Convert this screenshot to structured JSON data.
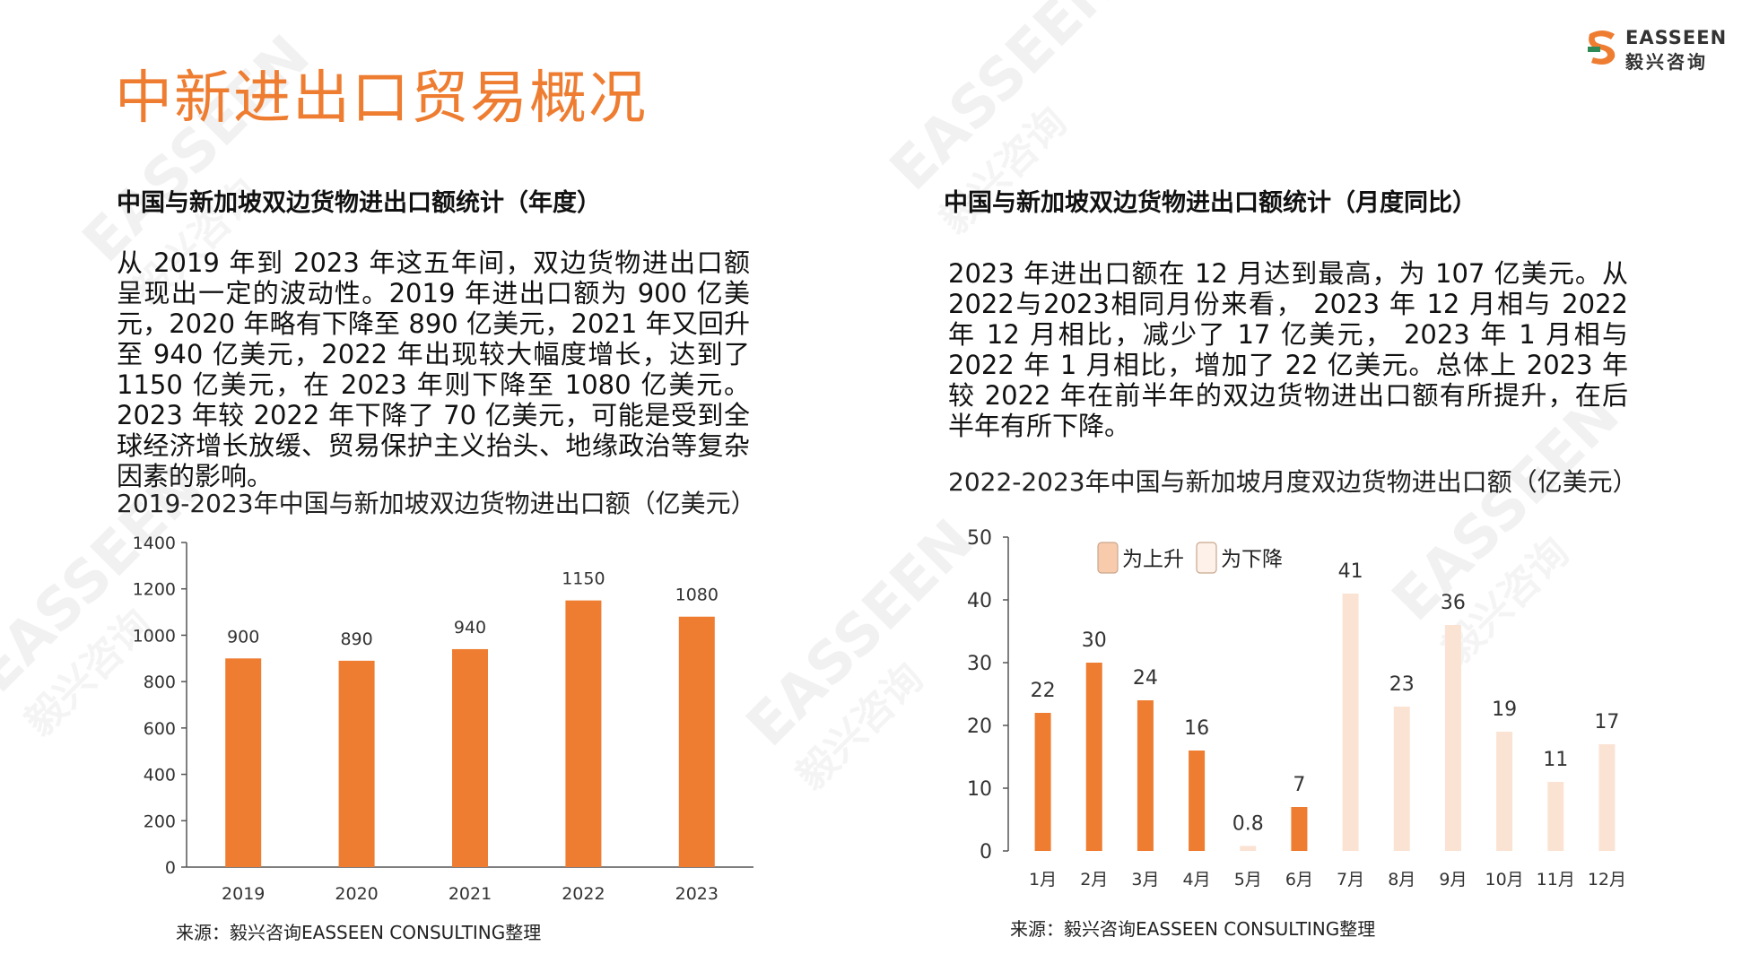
{
  "page": {
    "title": "中新进出口贸易概况",
    "logo": {
      "en": "EASSEEN",
      "cn": "毅兴咨询"
    },
    "watermark": {
      "en": "EASSEEN",
      "cn": "毅兴咨询"
    }
  },
  "left": {
    "heading": "中国与新加坡双边货物进出口额统计（年度）",
    "paragraph": "从 2019 年到 2023 年这五年间，双边货物进出口额呈现出一定的波动性。2019 年进出口额为 900 亿美元，2020 年略有下降至 890 亿美元，2021 年又回升至 940 亿美元，2022 年出现较大幅度增长，达到了 1150 亿美元，在 2023 年则下降至 1080 亿美元。2023 年较 2022 年下降了 70 亿美元，可能是受到全球经济增长放缓、贸易保护主义抬头、地缘政治等复杂因素的影响。",
    "chart_title": "2019-2023年中国与新加坡双边货物进出口额（亿美元）",
    "source": "来源：毅兴咨询EASSEEN CONSULTING整理"
  },
  "right": {
    "heading": "中国与新加坡双边货物进出口额统计（月度同比）",
    "paragraph": "2023 年进出口额在 12 月达到最高，为 107 亿美元。从2022与2023相同月份来看， 2023 年 12 月相与 2022 年 12 月相比，减少了 17 亿美元， 2023 年 1 月相与 2022 年 1 月相比，增加了 22 亿美元。总体上 2023 年较 2022 年在前半年的双边货物进出口额有所提升，在后半年有所下降。",
    "chart_title": "2022-2023年中国与新加坡月度双边货物进出口额（亿美元）",
    "source": "来源：毅兴咨询EASSEEN CONSULTING整理"
  },
  "colors": {
    "accent": "#ee7d31",
    "bar": "#ee7d31",
    "bar_light": "#fbe3d4",
    "axis": "#555555"
  },
  "chart_data": [
    {
      "type": "bar",
      "categories": [
        "2019",
        "2020",
        "2021",
        "2022",
        "2023"
      ],
      "values": [
        900,
        890,
        940,
        1150,
        1080
      ],
      "ylim": [
        0,
        1400
      ],
      "yticks": [
        0,
        200,
        400,
        600,
        800,
        1000,
        1200,
        1400
      ],
      "grid": false
    },
    {
      "type": "bar",
      "categories": [
        "1月",
        "2月",
        "3月",
        "4月",
        "5月",
        "6月",
        "7月",
        "8月",
        "9月",
        "10月",
        "11月",
        "12月"
      ],
      "values": [
        22,
        30,
        24,
        16,
        0.8,
        7,
        41,
        23,
        36,
        19,
        11,
        17
      ],
      "direction": [
        "up",
        "up",
        "up",
        "up",
        "down",
        "up",
        "down",
        "down",
        "down",
        "down",
        "down",
        "down"
      ],
      "legend": [
        {
          "key": "up",
          "label": "为上升"
        },
        {
          "key": "down",
          "label": "为下降"
        }
      ],
      "legend_position": "top-left",
      "ylim": [
        0,
        50
      ],
      "yticks": [
        0,
        10,
        20,
        30,
        40,
        50
      ],
      "grid": false
    }
  ]
}
